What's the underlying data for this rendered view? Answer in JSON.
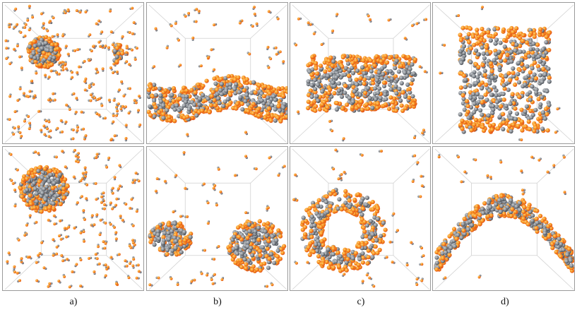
{
  "figure": {
    "captions": [
      "a)",
      "b)",
      "c)",
      "d)"
    ]
  },
  "colors": {
    "hydrophilic_head": "#f7931e",
    "head_dark": "#e2521a",
    "hydrophobic_tail": "#8a8f95",
    "tail_dark": "#4a4f57",
    "panel_edge": "#9a9a9a",
    "box_line": "#d2d2d2"
  },
  "panels": [
    {
      "id": "a-top",
      "structure": "small-spherical-micelles"
    },
    {
      "id": "b-top",
      "structure": "wavy-bilayer-slab"
    },
    {
      "id": "c-top",
      "structure": "cylindrical-micelle-side-view"
    },
    {
      "id": "d-top",
      "structure": "large-cylinder-side-view"
    },
    {
      "id": "a-bottom",
      "structure": "disc-micelle"
    },
    {
      "id": "b-bottom",
      "structure": "two-aggregates"
    },
    {
      "id": "c-bottom",
      "structure": "tube-end-view"
    },
    {
      "id": "d-bottom",
      "structure": "curved-bilayer"
    }
  ]
}
